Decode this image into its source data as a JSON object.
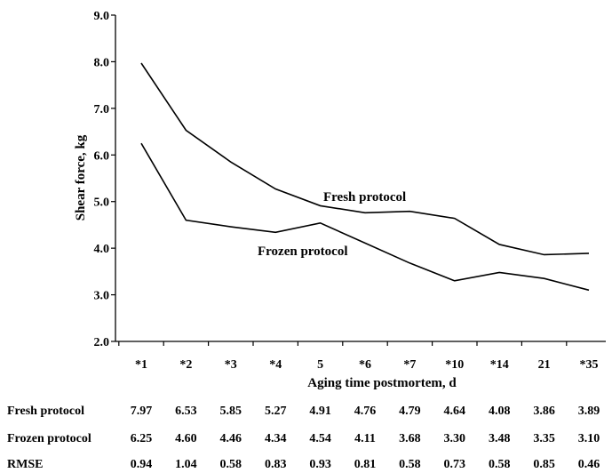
{
  "chart_data": {
    "type": "line",
    "title": "",
    "xlabel": "Aging time postmortem, d",
    "ylabel": "Shear force, kg",
    "ylim": [
      2.0,
      9.0
    ],
    "yticks": [
      "2.0",
      "3.0",
      "4.0",
      "5.0",
      "6.0",
      "7.0",
      "8.0",
      "9.0"
    ],
    "grid": false,
    "categories": [
      "*1",
      "*2",
      "*3",
      "*4",
      "5",
      "*6",
      "*7",
      "*10",
      "*14",
      "21",
      "*35"
    ],
    "series": [
      {
        "name": "Fresh protocol",
        "values": [
          7.97,
          6.53,
          5.85,
          5.27,
          4.91,
          4.76,
          4.79,
          4.64,
          4.08,
          3.86,
          3.89
        ],
        "color": "#000000"
      },
      {
        "name": "Frozen protocol",
        "values": [
          6.25,
          4.6,
          4.46,
          4.34,
          4.54,
          4.11,
          3.68,
          3.3,
          3.48,
          3.35,
          3.1
        ],
        "color": "#000000"
      }
    ],
    "annotations": [
      {
        "text": "Fresh protocol",
        "series": "Fresh protocol"
      },
      {
        "text": "Frozen protocol",
        "series": "Frozen protocol"
      }
    ],
    "table": {
      "rows": [
        {
          "label": "Fresh protocol",
          "values": [
            "7.97",
            "6.53",
            "5.85",
            "5.27",
            "4.91",
            "4.76",
            "4.79",
            "4.64",
            "4.08",
            "3.86",
            "3.89"
          ]
        },
        {
          "label": "Frozen protocol",
          "values": [
            "6.25",
            "4.60",
            "4.46",
            "4.34",
            "4.54",
            "4.11",
            "3.68",
            "3.30",
            "3.48",
            "3.35",
            "3.10"
          ]
        },
        {
          "label": "RMSE",
          "values": [
            "0.94",
            "1.04",
            "0.58",
            "0.83",
            "0.93",
            "0.81",
            "0.58",
            "0.73",
            "0.58",
            "0.85",
            "0.46"
          ]
        }
      ]
    }
  }
}
